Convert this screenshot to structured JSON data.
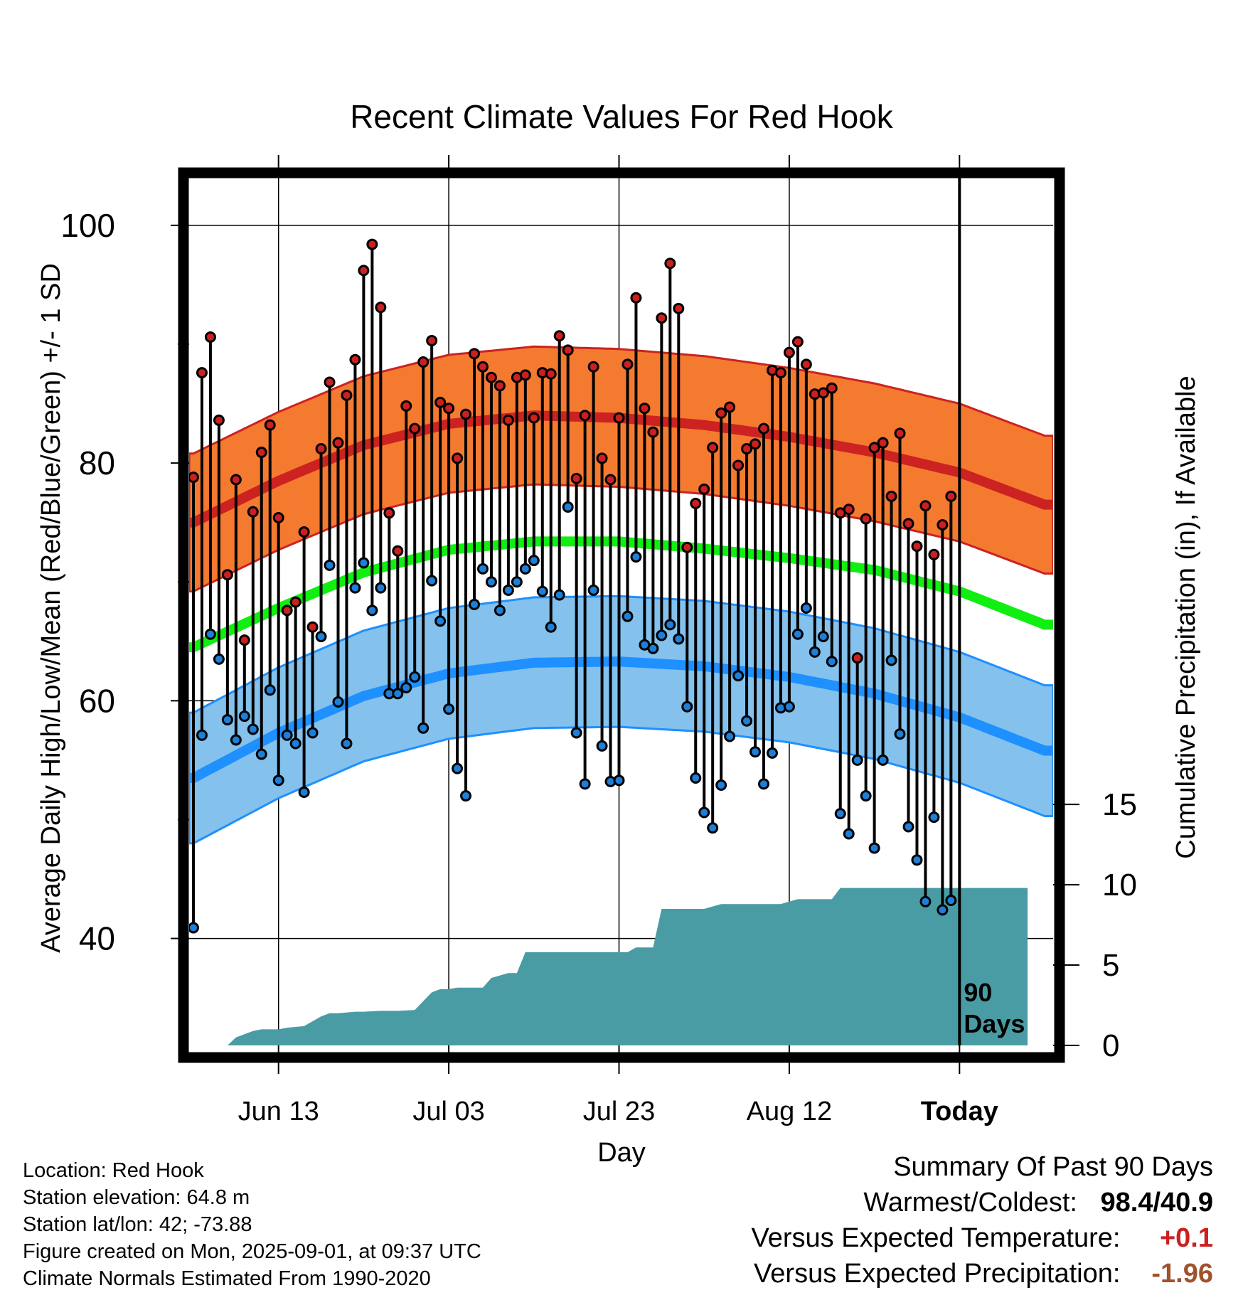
{
  "chart_data": {
    "type": "line",
    "title": "Recent Climate Values For Red Hook",
    "xlabel": "Day",
    "ylabel": "Average Daily High/Low/Mean (Red/Blue/Green) +/- 1 SD",
    "y2label": "Cumulative Precipitation (in), If Available",
    "xlim": [
      -10.5,
      91
    ],
    "ylim": [
      31,
      104
    ],
    "y2lim": [
      0,
      54
    ],
    "x_ticks": [
      {
        "x": 0,
        "label": "Jun 13"
      },
      {
        "x": 20,
        "label": "Jul 03"
      },
      {
        "x": 40,
        "label": "Jul 23"
      },
      {
        "x": 60,
        "label": "Aug 12"
      },
      {
        "x": 80,
        "label": "Today"
      }
    ],
    "y_ticks": [
      40,
      60,
      80,
      100
    ],
    "y2_ticks": [
      0,
      5,
      10,
      15
    ],
    "today_marker": {
      "x": 80,
      "label_line1": "90",
      "label_line2": "Days"
    },
    "normal_high": {
      "x": [
        -10,
        0,
        10,
        20,
        30,
        40,
        50,
        60,
        70,
        80,
        90
      ],
      "mean": [
        75.0,
        78.5,
        81.5,
        83.3,
        84.0,
        83.8,
        83.2,
        82.2,
        80.9,
        79.2,
        76.5
      ],
      "sd": 5.8
    },
    "normal_mean": {
      "x": [
        -10,
        0,
        10,
        20,
        30,
        40,
        50,
        60,
        70,
        80,
        90
      ],
      "values": [
        64.5,
        67.8,
        70.8,
        72.7,
        73.4,
        73.4,
        72.8,
        72.0,
        71.0,
        69.2,
        66.4
      ]
    },
    "normal_low": {
      "x": [
        -10,
        0,
        10,
        20,
        30,
        40,
        50,
        60,
        70,
        80,
        90
      ],
      "mean": [
        53.5,
        57.3,
        60.4,
        62.3,
        63.2,
        63.3,
        62.9,
        62.0,
        60.6,
        58.6,
        55.8
      ],
      "sd": 5.5
    },
    "series": [
      {
        "name": "High",
        "x": [
          -10,
          -9,
          -8,
          -7,
          -6,
          -5,
          -4,
          -3,
          -2,
          -1,
          0,
          1,
          2,
          3,
          4,
          5,
          6,
          7,
          8,
          9,
          10,
          11,
          12,
          13,
          14,
          15,
          16,
          17,
          18,
          19,
          20,
          21,
          22,
          23,
          24,
          25,
          26,
          27,
          28,
          29,
          30,
          31,
          32,
          33,
          34,
          35,
          36,
          37,
          38,
          39,
          40,
          41,
          42,
          43,
          44,
          45,
          46,
          47,
          48,
          49,
          50,
          51,
          52,
          53,
          54,
          55,
          56,
          57,
          58,
          59,
          60,
          61,
          62,
          63,
          64,
          65,
          66,
          67,
          68,
          69,
          70,
          71,
          72,
          73,
          74,
          75,
          76,
          77,
          78,
          79
        ],
        "values": [
          78.8,
          87.6,
          90.6,
          83.6,
          70.6,
          78.6,
          65.1,
          75.9,
          80.9,
          83.2,
          75.4,
          67.6,
          68.3,
          74.2,
          66.2,
          81.2,
          86.8,
          81.7,
          85.7,
          88.7,
          96.2,
          98.4,
          93.1,
          75.8,
          72.6,
          84.8,
          82.9,
          88.5,
          90.3,
          85.1,
          84.6,
          80.4,
          84.1,
          89.2,
          88.1,
          87.2,
          86.5,
          83.6,
          87.2,
          87.4,
          83.8,
          87.6,
          87.5,
          90.7,
          89.5,
          78.7,
          84.0,
          88.1,
          80.4,
          78.6,
          83.8,
          88.3,
          93.9,
          84.6,
          82.6,
          92.2,
          96.8,
          93.0,
          72.9,
          76.6,
          77.8,
          81.3,
          84.2,
          84.7,
          79.8,
          81.2,
          81.6,
          82.9,
          87.8,
          87.6,
          89.3,
          90.2,
          88.3,
          85.8,
          85.9,
          86.3,
          75.8,
          76.1,
          63.6,
          75.3,
          81.3,
          81.7,
          77.2,
          82.5,
          74.9,
          73.0,
          76.4,
          72.3,
          74.8,
          77.2
        ]
      },
      {
        "name": "Low",
        "x": [
          -10,
          -9,
          -8,
          -7,
          -6,
          -5,
          -4,
          -3,
          -2,
          -1,
          0,
          1,
          2,
          3,
          4,
          5,
          6,
          7,
          8,
          9,
          10,
          11,
          12,
          13,
          14,
          15,
          16,
          17,
          18,
          19,
          20,
          21,
          22,
          23,
          24,
          25,
          26,
          27,
          28,
          29,
          30,
          31,
          32,
          33,
          34,
          35,
          36,
          37,
          38,
          39,
          40,
          41,
          42,
          43,
          44,
          45,
          46,
          47,
          48,
          49,
          50,
          51,
          52,
          53,
          54,
          55,
          56,
          57,
          58,
          59,
          60,
          61,
          62,
          63,
          64,
          65,
          66,
          67,
          68,
          69,
          70,
          71,
          72,
          73,
          74,
          75,
          76,
          77,
          78,
          79
        ],
        "values": [
          40.9,
          57.1,
          65.6,
          63.5,
          58.4,
          56.7,
          58.7,
          57.6,
          55.5,
          60.9,
          53.3,
          57.1,
          56.4,
          52.3,
          57.3,
          65.4,
          71.4,
          59.9,
          56.4,
          69.5,
          71.6,
          67.6,
          69.5,
          60.6,
          60.6,
          61.1,
          62.0,
          57.7,
          70.1,
          66.7,
          59.3,
          54.3,
          52.0,
          68.1,
          71.1,
          70.0,
          67.6,
          69.3,
          70.0,
          71.1,
          71.8,
          69.2,
          66.2,
          68.9,
          76.3,
          57.3,
          53.0,
          69.3,
          56.2,
          53.2,
          53.3,
          67.1,
          72.1,
          64.7,
          64.4,
          65.5,
          66.4,
          65.2,
          59.5,
          53.5,
          50.6,
          49.3,
          52.9,
          57.0,
          62.1,
          58.3,
          55.7,
          53.0,
          55.6,
          59.4,
          59.5,
          65.6,
          67.8,
          64.1,
          65.4,
          63.3,
          50.5,
          48.8,
          55.0,
          52.0,
          47.6,
          55.0,
          63.4,
          57.2,
          49.4,
          46.6,
          43.1,
          50.2,
          42.4,
          43.2
        ]
      },
      {
        "name": "Cumulative Precipitation",
        "x": [
          -10,
          -6,
          -5,
          -4,
          -3,
          -2,
          0,
          1,
          3,
          5,
          6,
          7,
          9,
          10,
          12,
          14,
          16,
          18,
          19,
          20,
          21,
          23,
          24,
          25,
          27,
          28,
          29,
          30,
          31,
          32,
          33,
          34,
          35,
          36,
          37,
          38,
          39,
          40,
          41,
          42,
          43,
          44,
          45,
          46,
          47,
          49,
          50,
          52,
          54,
          56,
          57,
          59,
          61,
          63,
          65,
          66,
          68,
          69,
          71,
          73,
          75,
          77,
          79,
          80,
          88
        ],
        "values": [
          0,
          0,
          0.5,
          0.7,
          0.9,
          1.0,
          1.0,
          1.1,
          1.2,
          1.8,
          2.0,
          2.0,
          2.1,
          2.1,
          2.15,
          2.15,
          2.2,
          3.3,
          3.5,
          3.5,
          3.6,
          3.6,
          3.6,
          4.2,
          4.5,
          4.5,
          5.8,
          5.8,
          5.8,
          5.8,
          5.8,
          5.8,
          5.8,
          5.8,
          5.8,
          5.8,
          5.8,
          5.8,
          5.8,
          6.1,
          6.1,
          6.1,
          8.5,
          8.5,
          8.5,
          8.5,
          8.5,
          8.8,
          8.8,
          8.8,
          8.8,
          8.8,
          9.1,
          9.1,
          9.1,
          9.8,
          9.8,
          9.8,
          9.8,
          9.8,
          9.8,
          9.8,
          9.8,
          9.8,
          9.8
        ]
      }
    ]
  },
  "station": {
    "location": "Location: Red Hook",
    "elevation": "Station elevation: 64.8 m",
    "latlon": "Station lat/lon: 42; -73.88",
    "created": "Figure created on Mon, 2025-09-01, at 09:37 UTC",
    "normals": "Climate Normals Estimated From 1990-2020"
  },
  "summary": {
    "heading": "Summary Of Past 90 Days",
    "warm_cold_label": "Warmest/Coldest:",
    "warm_cold_value": "98.4/40.9",
    "temp_label": "Versus Expected Temperature:",
    "temp_value": "+0.1",
    "precip_label": "Versus Expected Precipitation:",
    "precip_value": "-1.96"
  },
  "colors": {
    "high_band": "#f47a30",
    "high_line": "#cc2222",
    "mean_line": "#11ee11",
    "low_band": "#84c1ec",
    "low_line": "#1e90ff",
    "precip_fill": "#4a9ca4",
    "high_dot": "#cc2020",
    "low_dot": "#1e7fd8",
    "temp_anomaly": "#cc2020",
    "precip_anomaly": "#a0522d"
  }
}
